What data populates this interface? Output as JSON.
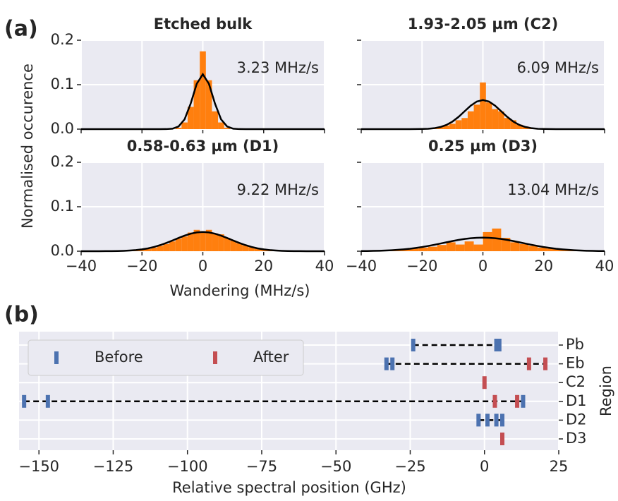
{
  "panels": [
    {
      "label": "(a)",
      "xlabel": "Wandering (MHz/s)",
      "ylabel": "Normalised occurence"
    },
    {
      "label": "(b)"
    }
  ],
  "chart_data": [
    {
      "type": "histogram",
      "title": "Etched bulk",
      "annotation": "3.23 MHz/s",
      "color": "#ff7f0e",
      "bins": [
        -9,
        -7,
        -5,
        -3,
        -1,
        1,
        3,
        5,
        7,
        9
      ],
      "counts": [
        0.003,
        0.015,
        0.05,
        0.11,
        0.175,
        0.11,
        0.04,
        0.015,
        0.003
      ],
      "fit": {
        "color": "#000000",
        "x": [
          -40,
          -38,
          -36,
          -34,
          -32,
          -30,
          -28,
          -26,
          -24,
          -22,
          -20,
          -18,
          -16,
          -14,
          -12,
          -10,
          -8,
          -6,
          -4,
          -2,
          0,
          2,
          4,
          6,
          8,
          10,
          12,
          14,
          16,
          18,
          20,
          22,
          24,
          26,
          28,
          30,
          32,
          34,
          36,
          38,
          40
        ],
        "y": [
          0,
          0,
          0,
          0,
          0,
          0,
          0,
          0,
          0,
          0,
          0,
          0,
          0,
          0,
          0.0001,
          0.001,
          0.0058,
          0.022,
          0.0574,
          0.102,
          0.1235,
          0.102,
          0.0574,
          0.022,
          0.0058,
          0.001,
          0.0001,
          0,
          0,
          0,
          0,
          0,
          0,
          0,
          0,
          0,
          0,
          0,
          0,
          0,
          0
        ]
      },
      "xlim": [
        -40,
        40
      ],
      "ylim": [
        0,
        0.2
      ],
      "xticks": [
        -40,
        -20,
        0,
        20,
        40
      ],
      "yticks": [
        {
          "value": 0,
          "label": "0.0"
        },
        0.1,
        0.2
      ],
      "show_xticklabels": false,
      "show_yticklabels": true,
      "grid": true
    },
    {
      "type": "histogram",
      "title": "1.93-2.05 µm (C2)",
      "annotation": "6.09 MHz/s",
      "color": "#ff7f0e",
      "bins": [
        -19,
        -17,
        -15,
        -13,
        -11,
        -9,
        -7,
        -5,
        -3,
        -1,
        1,
        3,
        5,
        7,
        9,
        11,
        13,
        15,
        17,
        19
      ],
      "counts": [
        0.001,
        0.002,
        0.005,
        0.008,
        0.012,
        0.02,
        0.025,
        0.04,
        0.055,
        0.105,
        0.06,
        0.045,
        0.04,
        0.025,
        0.02,
        0.01,
        0.006,
        0.003,
        0.001
      ],
      "fit": {
        "color": "#000000",
        "x": [
          -40,
          -38,
          -36,
          -34,
          -32,
          -30,
          -28,
          -26,
          -24,
          -22,
          -20,
          -18,
          -16,
          -14,
          -12,
          -10,
          -8,
          -6,
          -4,
          -2,
          0,
          2,
          4,
          6,
          8,
          10,
          12,
          14,
          16,
          18,
          20,
          22,
          24,
          26,
          28,
          30,
          32,
          34,
          36,
          38,
          40
        ],
        "y": [
          0,
          0,
          0,
          0,
          0,
          0,
          0,
          0,
          0,
          0.0001,
          0.0003,
          0.0008,
          0.0021,
          0.0047,
          0.0094,
          0.017,
          0.0276,
          0.0403,
          0.0528,
          0.0621,
          0.0655,
          0.0621,
          0.0528,
          0.0403,
          0.0276,
          0.017,
          0.0094,
          0.0047,
          0.0021,
          0.0008,
          0.0003,
          0.0001,
          0,
          0,
          0,
          0,
          0,
          0,
          0,
          0,
          0
        ]
      },
      "xlim": [
        -40,
        40
      ],
      "ylim": [
        0,
        0.2
      ],
      "xticks": [
        -40,
        -20,
        0,
        20,
        40
      ],
      "yticks": [
        0,
        0.1,
        0.2
      ],
      "show_xticklabels": false,
      "show_yticklabels": false,
      "grid": true
    },
    {
      "type": "histogram",
      "title": "0.58-0.63 µm (D1)",
      "annotation": "9.22 MHz/s",
      "color": "#ff7f0e",
      "bins": [
        -25,
        -23,
        -21,
        -19,
        -17,
        -15,
        -13,
        -11,
        -9,
        -7,
        -5,
        -3,
        -1,
        1,
        3,
        5,
        7,
        9,
        11,
        13,
        15,
        17,
        19,
        21,
        23,
        25
      ],
      "counts": [
        0.001,
        0.002,
        0.003,
        0.005,
        0.008,
        0.012,
        0.016,
        0.022,
        0.028,
        0.033,
        0.042,
        0.048,
        0.045,
        0.048,
        0.04,
        0.038,
        0.03,
        0.024,
        0.018,
        0.013,
        0.009,
        0.006,
        0.003,
        0.002,
        0.001
      ],
      "fit": {
        "color": "#000000",
        "x": [
          -40,
          -38,
          -36,
          -34,
          -32,
          -30,
          -28,
          -26,
          -24,
          -22,
          -20,
          -18,
          -16,
          -14,
          -12,
          -10,
          -8,
          -6,
          -4,
          -2,
          0,
          2,
          4,
          6,
          8,
          10,
          12,
          14,
          16,
          18,
          20,
          22,
          24,
          26,
          28,
          30,
          32,
          34,
          36,
          38,
          40
        ],
        "y": [
          0,
          0,
          0,
          0,
          0.0001,
          0.0002,
          0.0004,
          0.0008,
          0.0015,
          0.0025,
          0.0041,
          0.0064,
          0.0096,
          0.0137,
          0.0186,
          0.024,
          0.0297,
          0.035,
          0.0394,
          0.0423,
          0.0433,
          0.0423,
          0.0394,
          0.035,
          0.0297,
          0.024,
          0.0186,
          0.0137,
          0.0096,
          0.0064,
          0.0041,
          0.0025,
          0.0015,
          0.0008,
          0.0004,
          0.0002,
          0.0001,
          0,
          0,
          0,
          0
        ]
      },
      "xlim": [
        -40,
        40
      ],
      "ylim": [
        0,
        0.2
      ],
      "xticks": [
        {
          "value": -40,
          "label": "−40"
        },
        {
          "value": -20,
          "label": "−20"
        },
        0,
        20,
        40
      ],
      "yticks": [
        {
          "value": 0,
          "label": "0.0"
        },
        0.1,
        0.2
      ],
      "show_xticklabels": true,
      "show_yticklabels": true,
      "grid": true
    },
    {
      "type": "histogram",
      "title": "0.25 µm (D3)",
      "annotation": "13.04 MHz/s",
      "color": "#ff7f0e",
      "bins": [
        -33,
        -30,
        -27,
        -24,
        -21,
        -18,
        -15,
        -12,
        -9,
        -6,
        -3,
        0,
        3,
        6,
        9,
        12,
        15,
        18,
        21,
        24,
        27,
        30,
        33
      ],
      "counts": [
        0.002,
        0.004,
        0.005,
        0.006,
        0.008,
        0.01,
        0.014,
        0.02,
        0.015,
        0.022,
        0.015,
        0.043,
        0.051,
        0.03,
        0.02,
        0.016,
        0.012,
        0.008,
        0.006,
        0.004,
        0.003,
        0.002
      ],
      "fit": {
        "color": "#000000",
        "x": [
          -40,
          -38,
          -36,
          -34,
          -32,
          -30,
          -28,
          -26,
          -24,
          -22,
          -20,
          -18,
          -16,
          -14,
          -12,
          -10,
          -8,
          -6,
          -4,
          -2,
          0,
          2,
          4,
          6,
          8,
          10,
          12,
          14,
          16,
          18,
          20,
          22,
          24,
          26,
          28,
          30,
          32,
          34,
          36,
          38,
          40
        ],
        "y": [
          0.0003,
          0.0004,
          0.0007,
          0.001,
          0.0015,
          0.0022,
          0.0031,
          0.0042,
          0.0056,
          0.0074,
          0.0094,
          0.0118,
          0.0144,
          0.0172,
          0.02,
          0.0228,
          0.0254,
          0.0275,
          0.0292,
          0.0302,
          0.0306,
          0.0302,
          0.0292,
          0.0275,
          0.0254,
          0.0228,
          0.02,
          0.0172,
          0.0144,
          0.0118,
          0.0094,
          0.0074,
          0.0056,
          0.0042,
          0.0031,
          0.0022,
          0.0015,
          0.001,
          0.0007,
          0.0004,
          0.0003
        ]
      },
      "xlim": [
        -40,
        40
      ],
      "ylim": [
        0,
        0.2
      ],
      "xticks": [
        {
          "value": -40,
          "label": "−40"
        },
        {
          "value": -20,
          "label": "−20"
        },
        0,
        20,
        40
      ],
      "yticks": [
        0,
        0.1,
        0.2
      ],
      "show_xticklabels": true,
      "show_yticklabels": false,
      "grid": true
    },
    {
      "type": "strip",
      "xlabel": "Relative spectral position (GHz)",
      "ylabel": "Region",
      "categories": [
        "Pb",
        "Eb",
        "C2",
        "D1",
        "D2",
        "D3"
      ],
      "series": [
        {
          "name": "Before",
          "color": "#4c72b0",
          "x": [
            -24,
            4,
            5,
            -33,
            -31,
            -155,
            -147,
            13,
            -2,
            1,
            4,
            6
          ],
          "y": [
            "Pb",
            "Pb",
            "Pb",
            "Eb",
            "Eb",
            "D1",
            "D1",
            "D1",
            "D2",
            "D2",
            "D2",
            "D2"
          ]
        },
        {
          "name": "After",
          "color": "#c44e52",
          "x": [
            15,
            20.5,
            0,
            3.5,
            11,
            6
          ],
          "y": [
            "Eb",
            "Eb",
            "C2",
            "D1",
            "D1",
            "D3"
          ]
        }
      ],
      "xlim": [
        -156.7,
        25
      ],
      "xticks": [
        {
          "value": -150,
          "label": "−150"
        },
        {
          "value": -125,
          "label": "−125"
        },
        {
          "value": -100,
          "label": "−100"
        },
        {
          "value": -75,
          "label": "−75"
        },
        {
          "value": -50,
          "label": "−50"
        },
        {
          "value": -25,
          "label": "−25"
        },
        0,
        25
      ],
      "legend": "upper left",
      "grid": true
    }
  ]
}
